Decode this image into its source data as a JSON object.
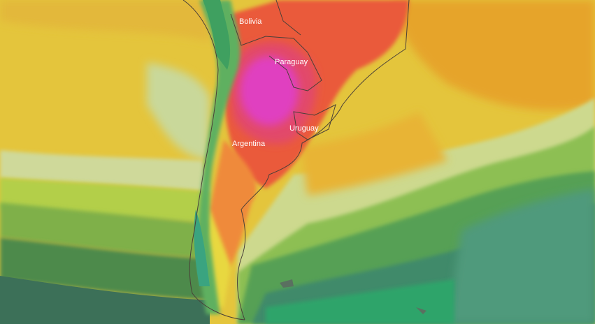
{
  "map": {
    "labels": [
      "Bolivia",
      "Paraguay",
      "Uruguay",
      "Argentina"
    ]
  }
}
